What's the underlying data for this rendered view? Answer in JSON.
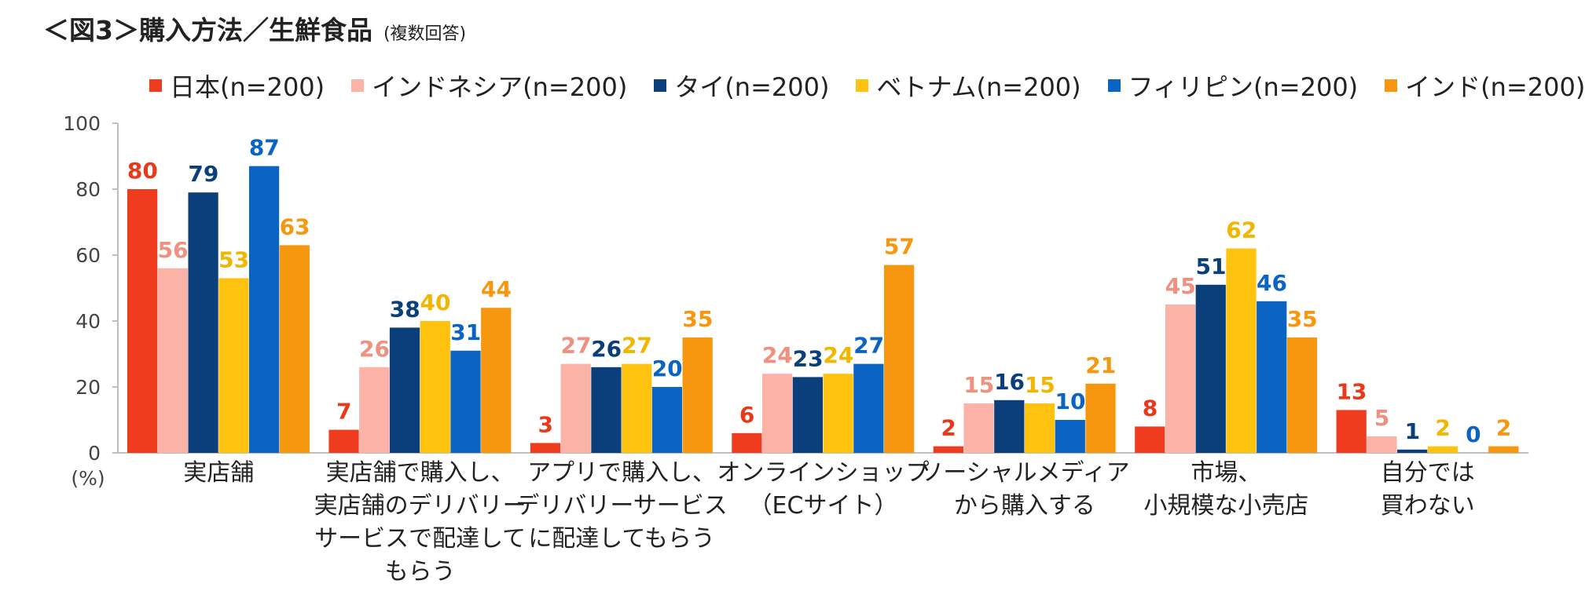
{
  "title": "＜図3＞購入方法／生鮮食品",
  "subtitle": "(複数回答)",
  "chart_data": {
    "type": "bar",
    "ylabel": "(%)",
    "ylim": [
      0,
      100
    ],
    "yticks": [
      "0",
      "20",
      "40",
      "60",
      "80",
      "100"
    ],
    "grid": false,
    "legend_position": "top",
    "categories": [
      [
        "実店舗"
      ],
      [
        "実店舗で購入し、",
        "実店舗のデリバリー",
        "サービスで配達して",
        "もらう"
      ],
      [
        "アプリで購入し、",
        "デリバリーサービス",
        "に配達してもらう"
      ],
      [
        "オンラインショップ",
        "（ECサイト）"
      ],
      [
        "ソーシャルメディア",
        "から購入する"
      ],
      [
        "市場、",
        "小規模な小売店"
      ],
      [
        "自分では",
        "買わない"
      ]
    ],
    "series": [
      {
        "name": "日本(n=200)",
        "color": "#f03c1e",
        "label_color": "#e8391b",
        "values": [
          80,
          7,
          3,
          6,
          2,
          8,
          13
        ]
      },
      {
        "name": "インドネシア(n=200)",
        "color": "#fab3a6",
        "label_color": "#f0907e",
        "values": [
          56,
          26,
          27,
          24,
          15,
          45,
          5
        ]
      },
      {
        "name": "タイ(n=200)",
        "color": "#0a3f7b",
        "label_color": "#0a3f7b",
        "values": [
          79,
          38,
          26,
          23,
          16,
          51,
          1
        ]
      },
      {
        "name": "ベトナム(n=200)",
        "color": "#ffc20e",
        "label_color": "#f2b500",
        "values": [
          53,
          40,
          27,
          24,
          15,
          62,
          2
        ]
      },
      {
        "name": "フィリピン(n=200)",
        "color": "#0a64c4",
        "label_color": "#0a64c4",
        "values": [
          87,
          31,
          20,
          27,
          10,
          46,
          0
        ]
      },
      {
        "name": "インド(n=200)",
        "color": "#f7960f",
        "label_color": "#f7960f",
        "values": [
          63,
          44,
          35,
          57,
          21,
          35,
          2
        ]
      }
    ]
  }
}
